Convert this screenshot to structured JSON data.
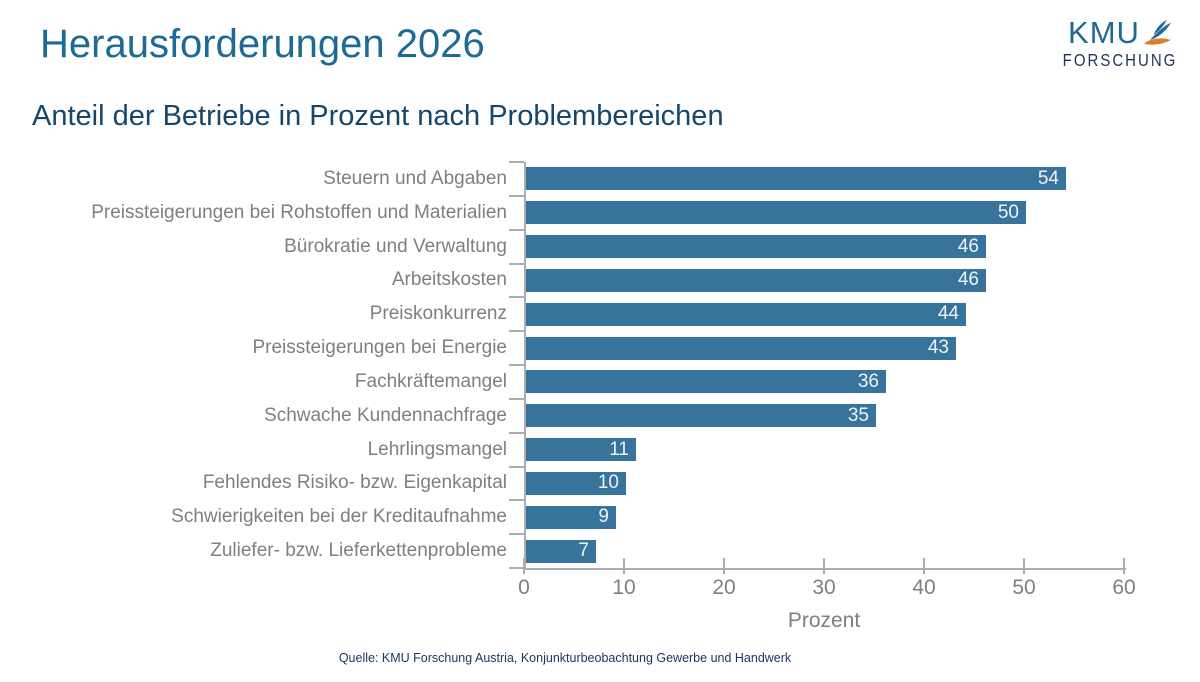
{
  "header": {
    "title": "Herausforderungen 2026",
    "logo": {
      "line1": "KMU",
      "line2": "FORSCHUNG"
    }
  },
  "subtitle": "Anteil der Betriebe in Prozent nach Problembereichen",
  "footer": {
    "source": "Quelle: KMU Forschung Austria, Konjunkturbeobachtung Gewerbe und Handwerk"
  },
  "colors": {
    "title": "#1D6A94",
    "subtitle": "#17466B",
    "bar": "#38739C",
    "axis": "#ADADAD",
    "tick_label": "#7F7F7F",
    "value_label": "#EDF3F8",
    "footer_text": "#17375E",
    "logo_blue": "#1D6A94",
    "logo_navy": "#1F3756",
    "logo_orange": "#E07B28"
  },
  "chart_data": {
    "type": "bar",
    "orientation": "horizontal",
    "title": "Herausforderungen 2026",
    "subtitle": "Anteil der Betriebe in Prozent nach Problembereichen",
    "categories": [
      "Steuern und Abgaben",
      "Preissteigerungen bei Rohstoffen und Materialien",
      "Bürokratie und Verwaltung",
      "Arbeitskosten",
      "Preiskonkurrenz",
      "Preissteigerungen bei Energie",
      "Fachkräftemangel",
      "Schwache Kundennachfrage",
      "Lehrlingsmangel",
      "Fehlendes Risiko- bzw. Eigenkapital",
      "Schwierigkeiten bei der Kreditaufnahme",
      "Zuliefer- bzw. Lieferkettenprobleme"
    ],
    "values": [
      54,
      50,
      46,
      46,
      44,
      43,
      36,
      35,
      11,
      10,
      9,
      7
    ],
    "xlabel": "Prozent",
    "xlim": [
      0,
      60
    ],
    "xticks": [
      0,
      10,
      20,
      30,
      40,
      50,
      60
    ],
    "grid": false,
    "legend": null,
    "value_label_position": "inside-end"
  }
}
